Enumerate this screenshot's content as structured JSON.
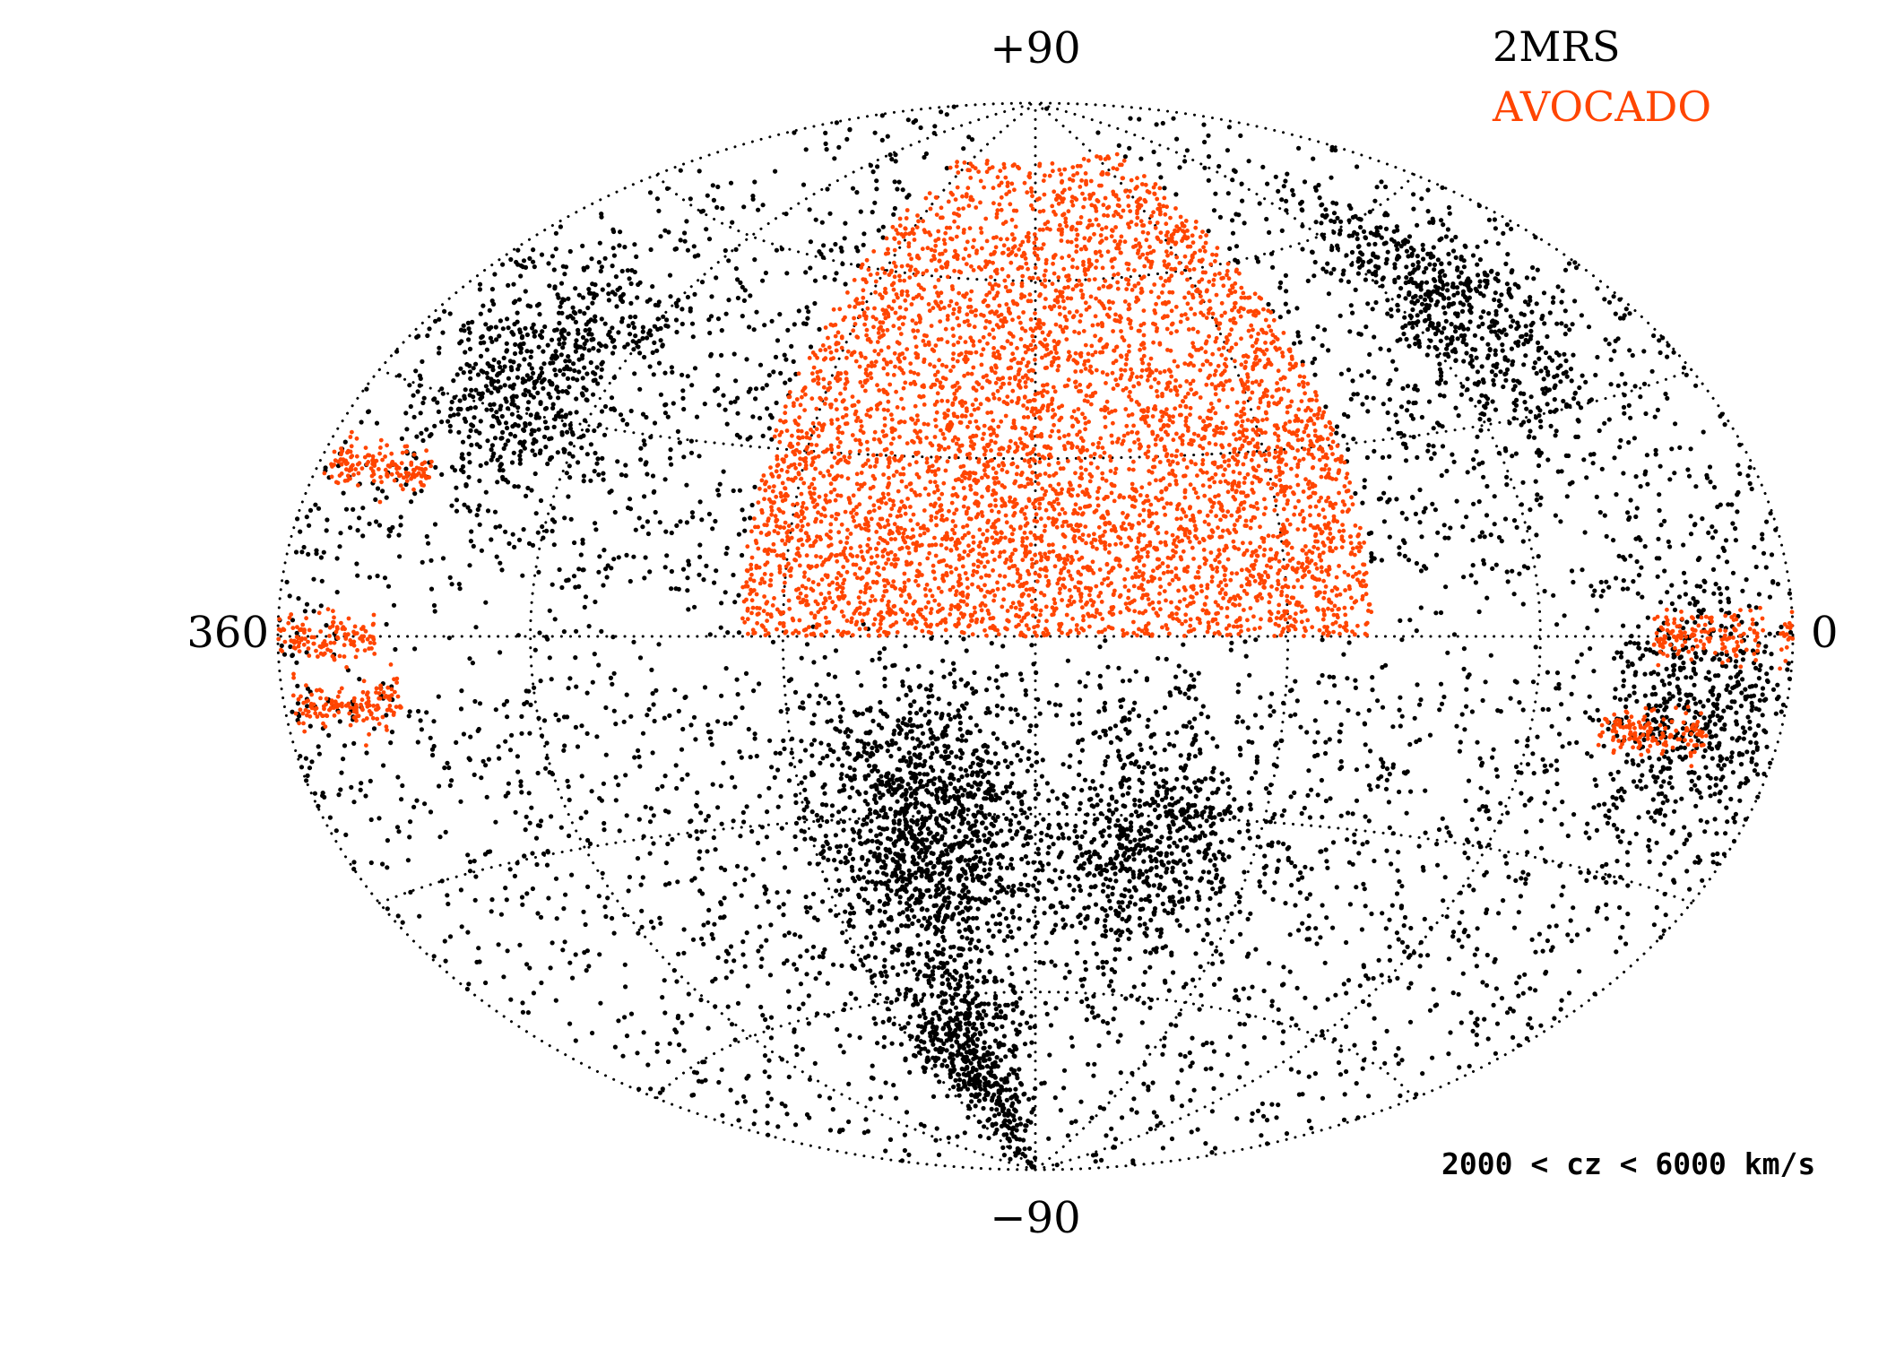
{
  "chart_data": {
    "type": "scatter",
    "projection": "Aitoff all-sky",
    "axis_labels": {
      "top": "+90",
      "bottom": "−90",
      "left": "360",
      "right": "0"
    },
    "xlim": [
      360,
      0
    ],
    "ylim": [
      -90,
      90
    ],
    "grid": true,
    "grid_style": "dotted",
    "grid_longitudes": [
      0,
      60,
      120,
      180,
      240,
      300,
      360
    ],
    "grid_latitudes": [
      -60,
      -30,
      0,
      30,
      60
    ],
    "legend_position": "top-right",
    "annotation": "2000 < cz < 6000 km/s",
    "series": [
      {
        "name": "2MRS",
        "color": "#000000",
        "point_count_estimate": 9000,
        "concentrations": [
          {
            "lon": 210,
            "lat": -25
          },
          {
            "lon": 150,
            "lat": -35
          },
          {
            "lon": 320,
            "lat": 35
          },
          {
            "lon": 45,
            "lat": 45
          },
          {
            "lon": 20,
            "lat": -8
          },
          {
            "lon": 215,
            "lat": -70
          },
          {
            "lon": 210,
            "lat": -40
          }
        ]
      },
      {
        "name": "AVOCADO",
        "color": "#ff4500",
        "point_count_estimate": 6000,
        "region": {
          "lon_range": [
            100,
            250
          ],
          "lat_range": [
            0,
            80
          ]
        },
        "strips": [
          {
            "lon": 20,
            "lat": 0
          },
          {
            "lon": 30,
            "lat": -12
          },
          {
            "lon": 345,
            "lat": -8
          },
          {
            "lon": 350,
            "lat": 0
          },
          {
            "lon": 345,
            "lat": 20
          }
        ]
      }
    ]
  }
}
